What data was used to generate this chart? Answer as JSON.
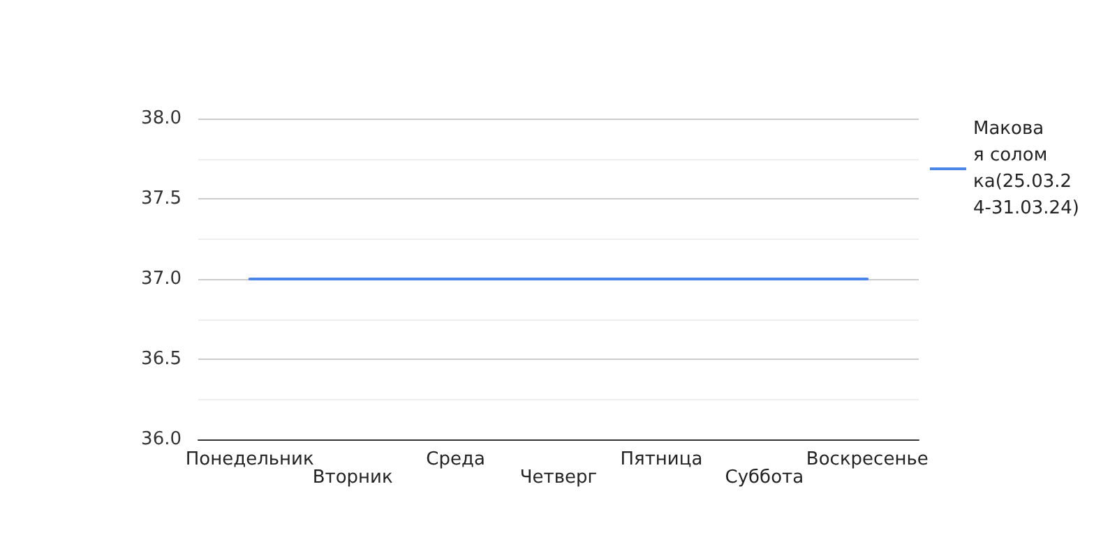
{
  "chart_data": {
    "type": "line",
    "categories": [
      "Понедельник",
      "Вторник",
      "Среда",
      "Четверг",
      "Пятница",
      "Суббота",
      "Воскресенье"
    ],
    "series": [
      {
        "name": "Маковая соломка(25.03.24-31.03.24)",
        "color": "#4a86e8",
        "values": [
          37,
          37,
          37,
          37,
          37,
          37,
          37
        ]
      }
    ],
    "ylim": [
      36,
      38
    ],
    "yticks": [
      {
        "value": 36,
        "label": "36.0"
      },
      {
        "value": 36.5,
        "label": "36.5"
      },
      {
        "value": 37,
        "label": "37.0"
      },
      {
        "value": 37.5,
        "label": "37.5"
      },
      {
        "value": 38,
        "label": "38.0"
      }
    ],
    "grid": "y",
    "legend": "right",
    "marker": "none",
    "line_style": "solid"
  }
}
